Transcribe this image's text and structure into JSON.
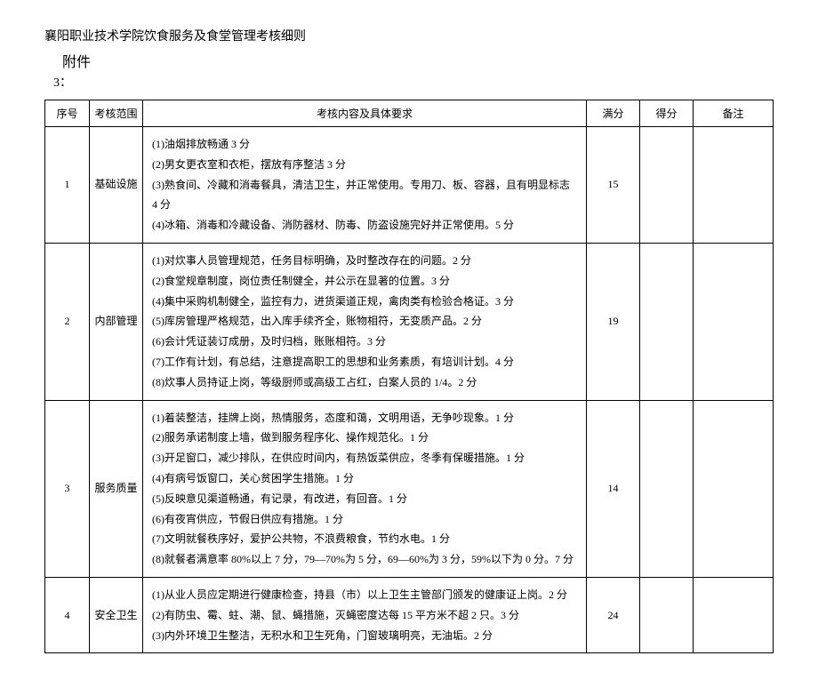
{
  "document": {
    "title": "襄阳职业技术学院饮食服务及食堂管理考核细则",
    "attachment_label": "附件",
    "attachment_number": "3："
  },
  "table": {
    "headers": {
      "seq": "序号",
      "scope": "考核范围",
      "content": "考核内容及具体要求",
      "full": "满分",
      "score": "得分",
      "remark": "备注"
    },
    "rows": [
      {
        "seq": "1",
        "scope": "基础设施",
        "full": "15",
        "score": "",
        "remark": "",
        "content": [
          "(1)油烟排放畅通 3 分",
          "(2)男女更衣室和衣柜，摆放有序整洁 3 分",
          "(3)熟食间、冷藏和消毒餐具，清洁卫生，并正常使用。专用刀、板、容器，且有明显标志 4 分",
          "(4)冰箱、消毒和冷藏设备、消防器材、防毒、防盗设施完好并正常使用。5 分"
        ]
      },
      {
        "seq": "2",
        "scope": "内部管理",
        "full": "19",
        "score": "",
        "remark": "",
        "content": [
          "(1)对炊事人员管理规范，任务目标明确，及时整改存在的问题。2 分",
          "(2)食堂规章制度，岗位责任制健全，并公示在显著的位置。3 分",
          "(4)集中采购机制健全，监控有力，进货渠道正规，禽肉类有检验合格证。3 分",
          "(5)库房管理严格规范，出入库手续齐全，账物相符，无变质产品。2 分",
          "(6)会计凭证装订成册，及时归档，账账相符。3 分",
          "(7)工作有计划，有总结，注意提高职工的思想和业务素质，有培训计划。4 分",
          "(8)炊事人员持证上岗，等级厨师或高级工占红，白案人员的 1/4。2 分"
        ]
      },
      {
        "seq": "3",
        "scope": "服务质量",
        "full": "14",
        "score": "",
        "remark": "",
        "content": [
          "(1)着装整洁，挂牌上岗，热情服务，态度和蔼，文明用语，无争吵现象。1 分",
          "(2)服务承诺制度上墙，做到服务程序化、操作规范化。1 分",
          "(3)开足窗口，减少排队，在供应时间内，有热饭菜供应，冬季有保暖措施。1 分",
          "(4)有病号饭窗口，关心贫困学生措施。1 分",
          "(5)反映意见渠道畅通，有记录，有改进，有回音。1 分",
          "(6)有夜宵供应，节假日供应有措施。1 分",
          "(7)文明就餐秩序好，爱护公共物，不浪费粮食，节约水电。1 分",
          "(8)就餐者满意率 80%以上 7 分，79—70%为 5 分，69—60%为 3 分，59%以下为 0 分。7 分"
        ]
      },
      {
        "seq": "4",
        "scope": "安全卫生",
        "full": "24",
        "score": "",
        "remark": "",
        "content": [
          "(1)从业人员应定期进行健康检查，持县（市）以上卫生主管部门颁发的健康证上岗。2 分",
          "(2)有防虫、霉、蛀、潮、鼠、蝇措施，灭蝇密度达每 15 平方米不超 2 只。3 分",
          "(3)内外环境卫生整洁，无积水和卫生死角，门窗玻璃明亮，无油垢。2 分"
        ]
      }
    ]
  },
  "styling": {
    "font_family": "SimSun",
    "title_fontsize": 14,
    "attachment_fontsize": 16,
    "table_fontsize": 12,
    "border_color": "#000000",
    "background_color": "#ffffff",
    "text_color": "#000000",
    "line_height": 1.9,
    "col_widths": {
      "seq": 50,
      "scope": 60,
      "full": 60,
      "score": 60,
      "remark": 90
    }
  }
}
